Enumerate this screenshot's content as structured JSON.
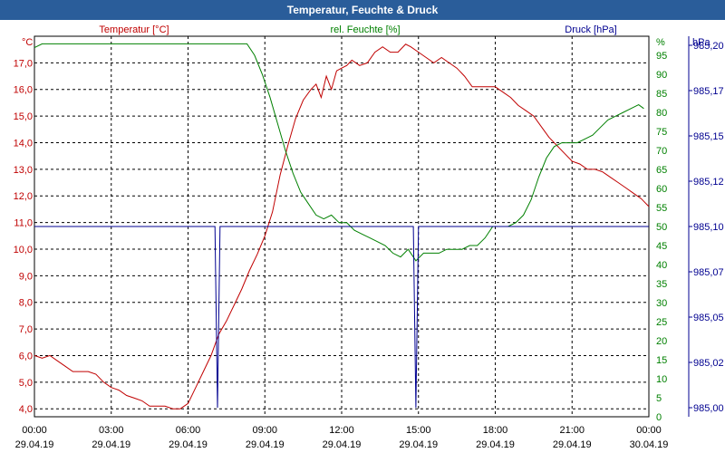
{
  "window": {
    "title": "Temperatur, Feuchte & Druck"
  },
  "colors": {
    "temperature": "#c00000",
    "humidity": "#008000",
    "pressure": "#000090",
    "titlebar": "#2a5d9a"
  },
  "chart_data": {
    "type": "line",
    "title": "Temperatur, Feuchte & Druck",
    "grid": true,
    "axes": {
      "left": {
        "label": "Temperatur [°C]",
        "unit": "°C",
        "ylim": [
          3.7,
          18.0
        ],
        "ticks": [
          "4,0",
          "5,0",
          "6,0",
          "7,0",
          "8,0",
          "9,0",
          "10,0",
          "11,0",
          "12,0",
          "13,0",
          "14,0",
          "15,0",
          "16,0",
          "17,0"
        ],
        "tick_values": [
          4,
          5,
          6,
          7,
          8,
          9,
          10,
          11,
          12,
          13,
          14,
          15,
          16,
          17
        ]
      },
      "mid": {
        "label": "rel. Feuchte [%]",
        "unit": "%",
        "ylim": [
          0,
          100
        ],
        "ticks": [
          "0",
          "5",
          "10",
          "15",
          "20",
          "25",
          "30",
          "35",
          "40",
          "45",
          "50",
          "55",
          "60",
          "65",
          "70",
          "75",
          "80",
          "85",
          "90",
          "95"
        ],
        "tick_values": [
          0,
          5,
          10,
          15,
          20,
          25,
          30,
          35,
          40,
          45,
          50,
          55,
          60,
          65,
          70,
          75,
          80,
          85,
          90,
          95
        ]
      },
      "right": {
        "label": "Druck [hPa]",
        "unit": "hPa",
        "ylim": [
          984.995,
          985.205
        ],
        "ticks": [
          "985,00",
          "985,02",
          "985,05",
          "985,07",
          "985,10",
          "985,12",
          "985,15",
          "985,17",
          "985,20"
        ],
        "tick_values": [
          985.0,
          985.025,
          985.05,
          985.075,
          985.1,
          985.125,
          985.15,
          985.175,
          985.2
        ]
      },
      "x": {
        "xlim": [
          0,
          24
        ],
        "ticks": [
          {
            "time": "00:00",
            "date": "29.04.19",
            "h": 0
          },
          {
            "time": "03:00",
            "date": "29.04.19",
            "h": 3
          },
          {
            "time": "06:00",
            "date": "29.04.19",
            "h": 6
          },
          {
            "time": "09:00",
            "date": "29.04.19",
            "h": 9
          },
          {
            "time": "12:00",
            "date": "29.04.19",
            "h": 12
          },
          {
            "time": "15:00",
            "date": "29.04.19",
            "h": 15
          },
          {
            "time": "18:00",
            "date": "29.04.19",
            "h": 18
          },
          {
            "time": "21:00",
            "date": "29.04.19",
            "h": 21
          },
          {
            "time": "00:00",
            "date": "30.04.19",
            "h": 24
          }
        ]
      }
    },
    "series": [
      {
        "name": "Temperatur [°C]",
        "axis": "left",
        "x": [
          0,
          0.3,
          0.6,
          0.9,
          1.2,
          1.5,
          1.8,
          2.1,
          2.4,
          2.7,
          3.0,
          3.3,
          3.6,
          3.9,
          4.2,
          4.5,
          4.8,
          5.1,
          5.4,
          5.7,
          6.0,
          6.3,
          6.6,
          6.9,
          7.2,
          7.5,
          7.8,
          8.1,
          8.4,
          8.7,
          9.0,
          9.3,
          9.6,
          9.9,
          10.2,
          10.5,
          10.8,
          11.0,
          11.2,
          11.4,
          11.6,
          11.8,
          12.0,
          12.2,
          12.4,
          12.7,
          13.0,
          13.3,
          13.6,
          13.9,
          14.2,
          14.5,
          14.7,
          15.0,
          15.3,
          15.6,
          15.9,
          16.2,
          16.5,
          16.8,
          17.1,
          17.4,
          17.7,
          18.0,
          18.3,
          18.6,
          18.9,
          19.2,
          19.5,
          19.8,
          20.1,
          20.4,
          20.7,
          21.0,
          21.3,
          21.6,
          21.9,
          22.2,
          22.5,
          22.8,
          23.1,
          23.4,
          23.7,
          24.0
        ],
        "values": [
          6.0,
          5.9,
          6.0,
          5.8,
          5.6,
          5.4,
          5.4,
          5.4,
          5.3,
          5.0,
          4.8,
          4.7,
          4.5,
          4.4,
          4.3,
          4.1,
          4.1,
          4.1,
          4.0,
          4.0,
          4.2,
          4.8,
          5.4,
          6.0,
          6.8,
          7.3,
          7.9,
          8.5,
          9.2,
          9.8,
          10.5,
          11.4,
          12.8,
          13.9,
          14.9,
          15.6,
          16.0,
          16.2,
          15.7,
          16.5,
          16.0,
          16.7,
          16.8,
          16.9,
          17.1,
          16.9,
          17.0,
          17.4,
          17.6,
          17.4,
          17.4,
          17.7,
          17.6,
          17.4,
          17.2,
          17.0,
          17.2,
          17.0,
          16.8,
          16.5,
          16.1,
          16.1,
          16.1,
          16.1,
          15.9,
          15.7,
          15.4,
          15.2,
          15.0,
          14.6,
          14.2,
          13.9,
          13.6,
          13.3,
          13.2,
          13.0,
          13.0,
          12.9,
          12.7,
          12.5,
          12.3,
          12.1,
          11.9,
          11.6
        ]
      },
      {
        "name": "rel. Feuchte [%]",
        "axis": "mid",
        "x": [
          0,
          0.3,
          0.6,
          1.0,
          2.0,
          3.0,
          4.0,
          5.0,
          6.0,
          7.0,
          8.0,
          8.3,
          8.6,
          8.9,
          9.2,
          9.5,
          9.8,
          10.1,
          10.4,
          10.7,
          11.0,
          11.3,
          11.6,
          11.9,
          12.2,
          12.5,
          12.8,
          13.1,
          13.4,
          13.7,
          14.0,
          14.3,
          14.6,
          14.9,
          15.2,
          15.5,
          15.8,
          16.1,
          16.4,
          16.7,
          17.0,
          17.3,
          17.6,
          17.9,
          18.2,
          18.5,
          18.8,
          19.1,
          19.4,
          19.7,
          20.0,
          20.3,
          20.6,
          20.9,
          21.2,
          21.5,
          21.8,
          22.1,
          22.4,
          22.7,
          23.0,
          23.3,
          23.6,
          23.8
        ],
        "values": [
          97,
          98,
          98,
          98,
          98,
          98,
          98,
          98,
          98,
          98,
          98,
          98,
          95,
          90,
          84,
          77,
          70,
          64,
          59,
          56,
          53,
          52,
          53,
          51,
          51,
          49,
          48,
          47,
          46,
          45,
          43,
          42,
          44,
          41,
          43,
          43,
          43,
          44,
          44,
          44,
          45,
          45,
          47,
          50,
          50,
          50,
          51,
          53,
          57,
          63,
          68,
          71,
          72,
          72,
          72,
          73,
          74,
          76,
          78,
          79,
          80,
          81,
          82,
          81
        ]
      },
      {
        "name": "Druck [hPa]",
        "axis": "right",
        "x": [
          0,
          6.95,
          7.05,
          7.15,
          7.25,
          7.35,
          14.7,
          14.8,
          14.9,
          15.0,
          15.1,
          24
        ],
        "values": [
          985.1,
          985.1,
          985.1,
          985.0,
          985.1,
          985.1,
          985.1,
          985.1,
          985.0,
          985.1,
          985.1,
          985.1
        ]
      }
    ]
  }
}
